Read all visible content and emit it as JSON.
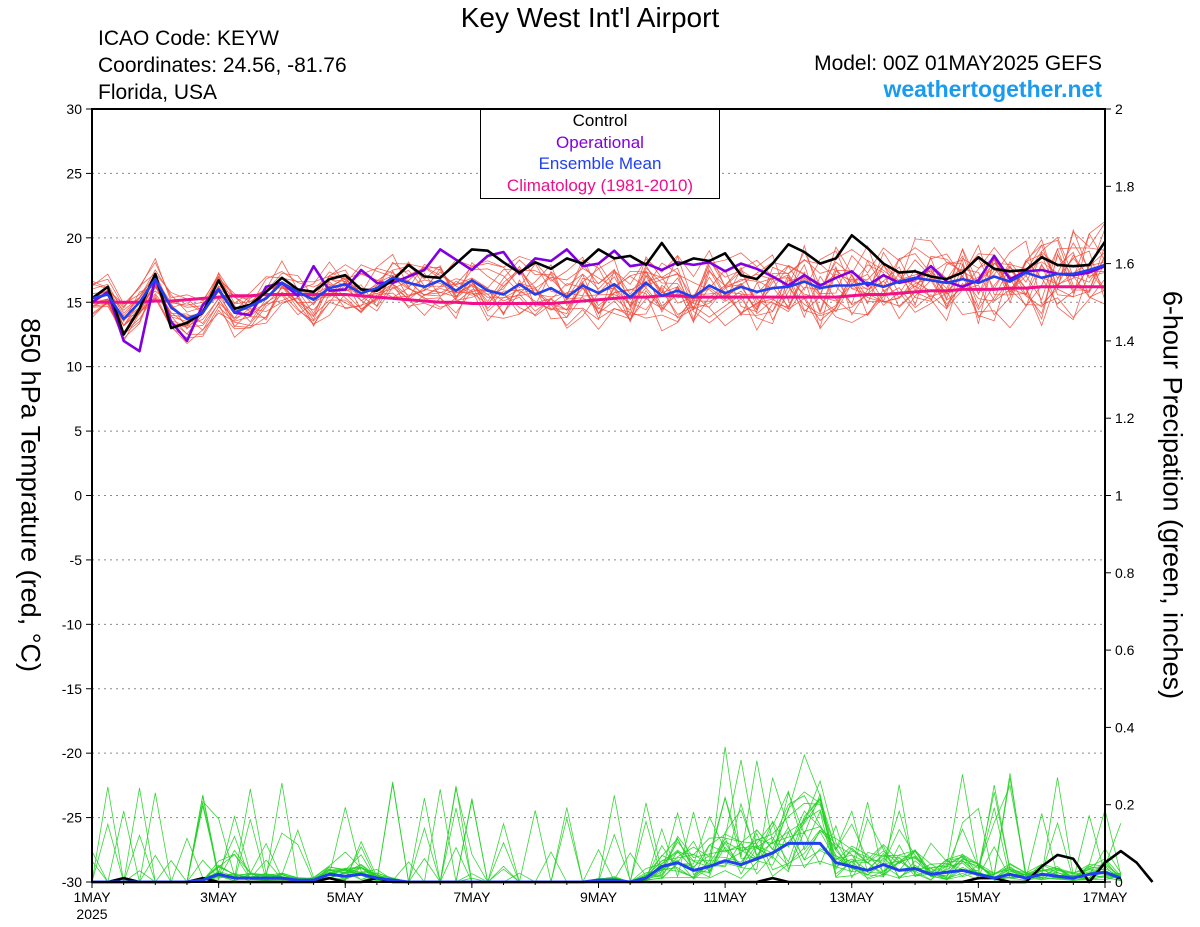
{
  "header": {
    "title": "Key West Int'l Airport",
    "icao": "ICAO Code: KEYW",
    "coords": "Coordinates: 24.56, -81.76",
    "location": "Florida, USA",
    "model": "Model: 00Z 01MAY2025 GEFS",
    "site": "weathertogether.net"
  },
  "colors": {
    "control": "#000000",
    "operational": "#8000e0",
    "mean": "#2040f0",
    "climatology": "#f0108a",
    "site": "#1a9bf0",
    "members_temp": "#f04a3a",
    "members_precip": "#22d022"
  },
  "chart_data": {
    "type": "line",
    "ylabel_left": "850 hPa Temprature (red, °C)",
    "ylabel_right": "6-hour Precipation (green, inches)",
    "y_left_range": [
      -30,
      30
    ],
    "y_left_ticks": [
      "30",
      "25",
      "20",
      "15",
      "10",
      "5",
      "0",
      "-5",
      "-10",
      "-15",
      "-20",
      "-25",
      "-30"
    ],
    "y_right_range": [
      0,
      2
    ],
    "y_right_ticks": [
      "2",
      "1.8",
      "1.6",
      "1.4",
      "1.2",
      "1",
      "0.8",
      "0.6",
      "0.4",
      "0.2",
      "0"
    ],
    "x_range_days": [
      1,
      17
    ],
    "x_ticks": [
      {
        "day": 1,
        "label": "1MAY"
      },
      {
        "day": 3,
        "label": "3MAY"
      },
      {
        "day": 5,
        "label": "5MAY"
      },
      {
        "day": 7,
        "label": "7MAY"
      },
      {
        "day": 9,
        "label": "9MAY"
      },
      {
        "day": 11,
        "label": "11MAY"
      },
      {
        "day": 13,
        "label": "13MAY"
      },
      {
        "day": 15,
        "label": "15MAY"
      },
      {
        "day": 17,
        "label": "17MAY"
      }
    ],
    "x_year_label": "2025",
    "grid": "horizontal dotted",
    "legend": [
      "Control",
      "Operational",
      "Ensemble Mean",
      "Climatology (1981-2010)"
    ],
    "legend_position": "top-center",
    "series": [
      {
        "name": "Control",
        "axis": "left",
        "day_start": 1,
        "step_days": 0.25,
        "values": [
          15.3,
          16.2,
          12.5,
          14.5,
          17.2,
          13.0,
          13.4,
          14.2,
          16.7,
          14.5,
          14.8,
          15.8,
          16.9,
          16.0,
          15.8,
          16.8,
          17.1,
          16.0,
          15.9,
          16.7,
          17.9,
          17.0,
          16.9,
          18.0,
          19.1,
          19.0,
          18.1,
          17.3,
          18.1,
          17.6,
          18.4,
          18.0,
          19.1,
          18.4,
          18.6,
          17.9,
          19.6,
          17.9,
          18.4,
          18.2,
          18.8,
          17.1,
          16.8,
          18.0,
          19.5,
          18.9,
          18.0,
          18.4,
          20.2,
          19.2,
          18.0,
          17.3,
          17.4,
          17.0,
          16.8,
          17.3,
          18.5,
          17.6,
          17.4,
          17.5,
          18.5,
          17.9,
          17.8,
          17.9,
          19.7
        ]
      },
      {
        "name": "Operational",
        "axis": "left",
        "day_start": 1,
        "step_days": 0.25,
        "values": [
          15.0,
          15.8,
          12.0,
          11.2,
          16.9,
          13.5,
          12.0,
          14.8,
          16.0,
          14.2,
          14.0,
          16.2,
          16.5,
          15.5,
          17.8,
          15.9,
          16.0,
          17.5,
          16.5,
          16.5,
          17.0,
          17.5,
          19.1,
          18.3,
          17.5,
          18.6,
          18.9,
          17.2,
          18.4,
          18.2,
          19.1,
          17.8,
          18.0,
          19.0,
          17.8,
          18.0,
          17.5,
          18.1,
          17.9,
          18.1,
          17.4,
          18.0,
          17.6,
          17.0,
          16.3,
          17.1,
          16.3,
          16.9,
          17.4,
          16.3,
          17.1,
          16.5,
          16.8,
          17.8,
          16.6,
          16.2,
          16.7,
          18.6,
          16.8,
          17.4,
          17.5,
          17.2,
          17.1,
          17.3,
          17.8
        ]
      },
      {
        "name": "Ensemble Mean",
        "axis": "left",
        "day_start": 1,
        "step_days": 0.25,
        "values": [
          15.3,
          15.6,
          13.7,
          15.0,
          16.8,
          14.6,
          13.7,
          14.2,
          16.0,
          14.2,
          14.7,
          15.3,
          16.5,
          15.8,
          15.2,
          16.1,
          16.4,
          15.7,
          16.1,
          16.9,
          16.5,
          16.2,
          16.7,
          15.9,
          16.7,
          15.9,
          15.6,
          16.4,
          15.6,
          16.1,
          15.4,
          16.3,
          15.7,
          16.4,
          15.4,
          16.5,
          15.5,
          15.9,
          15.4,
          16.3,
          15.7,
          16.2,
          15.8,
          16.1,
          16.2,
          16.6,
          16.1,
          16.3,
          16.3,
          16.5,
          16.2,
          16.6,
          16.9,
          16.7,
          16.5,
          16.8,
          16.5,
          17.0,
          16.6,
          17.3,
          16.9,
          17.2,
          17.2,
          17.5,
          17.9
        ]
      },
      {
        "name": "Climatology (1981-2010)",
        "axis": "left",
        "day_start": 1,
        "step_days": 0.25,
        "values": [
          15.0,
          15.0,
          15.0,
          15.0,
          15.1,
          15.1,
          15.2,
          15.3,
          15.4,
          15.5,
          15.5,
          15.6,
          15.6,
          15.6,
          15.6,
          15.6,
          15.6,
          15.5,
          15.4,
          15.3,
          15.2,
          15.1,
          15.0,
          15.0,
          14.9,
          14.9,
          14.9,
          14.9,
          14.9,
          14.9,
          15.0,
          15.1,
          15.2,
          15.3,
          15.4,
          15.4,
          15.5,
          15.5,
          15.4,
          15.4,
          15.4,
          15.4,
          15.4,
          15.4,
          15.4,
          15.4,
          15.4,
          15.4,
          15.5,
          15.6,
          15.6,
          15.7,
          15.8,
          15.9,
          15.9,
          16.0,
          16.0,
          16.0,
          16.1,
          16.1,
          16.2,
          16.2,
          16.2,
          16.2,
          16.2
        ]
      },
      {
        "name": "Control",
        "axis": "right",
        "day_start": 1,
        "step_days": 0.25,
        "values": [
          0,
          0,
          0.01,
          0,
          0,
          0,
          0,
          0.01,
          0,
          0,
          0,
          0,
          0,
          0,
          0,
          0.01,
          0,
          0,
          0.01,
          0,
          0,
          0,
          0,
          0,
          0,
          0,
          0,
          0,
          0,
          0,
          0,
          0,
          0,
          0,
          0,
          0,
          0,
          0,
          0,
          0,
          0,
          0,
          0,
          0.01,
          0,
          0,
          0,
          0,
          0,
          0,
          0,
          0,
          0,
          0,
          0,
          0,
          0.01,
          0.01,
          0,
          0,
          0.04,
          0.07,
          0.06,
          0,
          0.05,
          0.08,
          0.05,
          0
        ]
      },
      {
        "name": "Ensemble Mean",
        "axis": "right",
        "day_start": 1,
        "step_days": 0.25,
        "values": [
          0,
          0,
          0,
          0,
          0,
          0,
          0,
          0.005,
          0.02,
          0.01,
          0.01,
          0.01,
          0.01,
          0.005,
          0.005,
          0.02,
          0.015,
          0.02,
          0.01,
          0.005,
          0,
          0,
          0,
          0,
          0,
          0,
          0,
          0,
          0,
          0,
          0,
          0,
          0.005,
          0.005,
          0,
          0.01,
          0.04,
          0.05,
          0.03,
          0.04,
          0.055,
          0.045,
          0.06,
          0.075,
          0.1,
          0.1,
          0.1,
          0.05,
          0.04,
          0.03,
          0.045,
          0.03,
          0.035,
          0.02,
          0.025,
          0.03,
          0.02,
          0.01,
          0.02,
          0.01,
          0.02,
          0.015,
          0.01,
          0.02,
          0.025,
          0.01
        ]
      }
    ],
    "member_count": 20
  }
}
